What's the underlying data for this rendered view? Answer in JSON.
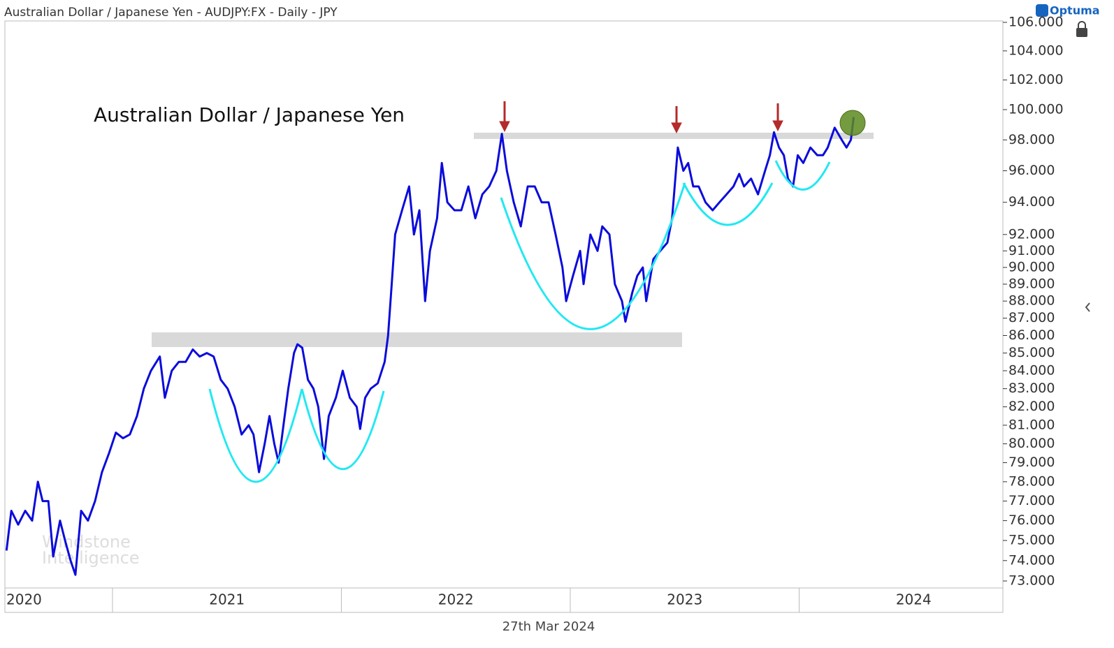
{
  "chart_data": {
    "type": "line",
    "title": "Australian Dollar / Japanese Yen - AUDJPY:FX - Daily - JPY",
    "annotation": "Australian Dollar / Japanese Yen",
    "brand": "Optuma",
    "watermark": [
      "Windstone",
      "Intelligence"
    ],
    "date_label": "27th Mar 2024",
    "log_scale": true,
    "xlim": [
      2020.53,
      2024.89
    ],
    "xticks": [
      2020,
      2021,
      2022,
      2023,
      2024
    ],
    "ylim": [
      72.66,
      106.1
    ],
    "yticks": [
      {
        "value": 73,
        "label": "73.000"
      },
      {
        "value": 74,
        "label": "74.000"
      },
      {
        "value": 75,
        "label": "75.000"
      },
      {
        "value": 76,
        "label": "76.000"
      },
      {
        "value": 77,
        "label": "77.000"
      },
      {
        "value": 78,
        "label": "78.000"
      },
      {
        "value": 79,
        "label": "79.000"
      },
      {
        "value": 80,
        "label": "80.000"
      },
      {
        "value": 81,
        "label": "81.000"
      },
      {
        "value": 82,
        "label": "82.000"
      },
      {
        "value": 83,
        "label": "83.000"
      },
      {
        "value": 84,
        "label": "84.000"
      },
      {
        "value": 85,
        "label": "85.000"
      },
      {
        "value": 86,
        "label": "86.000"
      },
      {
        "value": 87,
        "label": "87.000"
      },
      {
        "value": 88,
        "label": "88.000"
      },
      {
        "value": 89,
        "label": "89.000"
      },
      {
        "value": 90,
        "label": "90.000"
      },
      {
        "value": 91,
        "label": "91.000"
      },
      {
        "value": 92,
        "label": "92.000"
      },
      {
        "value": 94,
        "label": "94.000"
      },
      {
        "value": 96,
        "label": "96.000"
      },
      {
        "value": 98,
        "label": "98.000"
      },
      {
        "value": 100,
        "label": "100.000"
      },
      {
        "value": 102,
        "label": "102.000"
      },
      {
        "value": 104,
        "label": "104.000"
      },
      {
        "value": 106,
        "label": "106.000"
      }
    ],
    "series": [
      {
        "name": "AUDJPY",
        "color": "#0b0bdc",
        "x": [
          2020.537,
          2020.558,
          2020.588,
          2020.619,
          2020.649,
          2020.674,
          2020.695,
          2020.72,
          2020.741,
          2020.771,
          2020.793,
          2020.817,
          2020.838,
          2020.863,
          2020.893,
          2020.924,
          2020.954,
          2020.985,
          2021.015,
          2021.046,
          2021.076,
          2021.107,
          2021.137,
          2021.168,
          2021.207,
          2021.229,
          2021.259,
          2021.29,
          2021.32,
          2021.351,
          2021.381,
          2021.412,
          2021.442,
          2021.473,
          2021.503,
          2021.534,
          2021.564,
          2021.595,
          2021.616,
          2021.64,
          2021.665,
          2021.686,
          2021.707,
          2021.726,
          2021.747,
          2021.768,
          2021.793,
          2021.808,
          2021.829,
          2021.854,
          2021.878,
          2021.899,
          2021.924,
          2021.945,
          2021.976,
          2022.006,
          2022.037,
          2022.067,
          2022.082,
          2022.104,
          2022.128,
          2022.159,
          2022.189,
          2022.204,
          2022.22,
          2022.235,
          2022.265,
          2022.296,
          2022.317,
          2022.341,
          2022.366,
          2022.387,
          2022.418,
          2022.439,
          2022.463,
          2022.494,
          2022.524,
          2022.555,
          2022.585,
          2022.616,
          2022.646,
          2022.677,
          2022.701,
          2022.723,
          2022.753,
          2022.784,
          2022.814,
          2022.845,
          2022.875,
          2022.905,
          2022.936,
          2022.966,
          2022.982,
          2023.012,
          2023.043,
          2023.058,
          2023.088,
          2023.119,
          2023.14,
          2023.171,
          2023.195,
          2023.226,
          2023.241,
          2023.271,
          2023.293,
          2023.317,
          2023.332,
          2023.363,
          2023.393,
          2023.424,
          2023.445,
          2023.47,
          2023.494,
          2023.515,
          2023.537,
          2023.561,
          2023.591,
          2023.622,
          2023.652,
          2023.683,
          2023.713,
          2023.738,
          2023.759,
          2023.79,
          2023.82,
          2023.851,
          2023.872,
          2023.89,
          2023.912,
          2023.933,
          2023.951,
          2023.973,
          2023.994,
          2024.018,
          2024.049,
          2024.079,
          2024.104,
          2024.125,
          2024.155,
          2024.186,
          2024.207,
          2024.226,
          2024.238
        ],
        "values": [
          74.5,
          76.5,
          75.8,
          76.5,
          76.0,
          78.0,
          77.0,
          77.0,
          74.2,
          76.0,
          75.0,
          74.0,
          73.3,
          76.5,
          76.0,
          77.0,
          78.5,
          79.5,
          80.6,
          80.3,
          80.5,
          81.5,
          83.0,
          84.0,
          84.8,
          82.5,
          84.0,
          84.5,
          84.5,
          85.2,
          84.8,
          85.0,
          84.8,
          83.5,
          83.0,
          82.0,
          80.5,
          81.0,
          80.5,
          78.5,
          80.0,
          81.5,
          80.0,
          79.0,
          81.0,
          83.0,
          85.0,
          85.5,
          85.3,
          83.5,
          83.0,
          82.0,
          79.2,
          81.5,
          82.5,
          84.0,
          82.5,
          82.0,
          80.8,
          82.5,
          83.0,
          83.3,
          84.5,
          86.0,
          89.0,
          92.0,
          93.5,
          95.0,
          92.0,
          93.5,
          88.0,
          91.0,
          93.0,
          96.5,
          94.0,
          93.5,
          93.5,
          95.0,
          93.0,
          94.5,
          95.0,
          96.0,
          98.4,
          96.0,
          94.0,
          92.5,
          95.0,
          95.0,
          94.0,
          94.0,
          92.0,
          90.0,
          88.0,
          89.5,
          91.0,
          89.0,
          92.0,
          91.0,
          92.5,
          92.0,
          89.0,
          88.0,
          86.8,
          88.5,
          89.5,
          90.0,
          88.0,
          90.5,
          91.0,
          91.5,
          93.0,
          97.5,
          96.0,
          96.5,
          95.0,
          95.0,
          94.0,
          93.5,
          94.0,
          94.5,
          95.0,
          95.8,
          95.0,
          95.5,
          94.5,
          96.0,
          97.0,
          98.5,
          97.5,
          97.0,
          95.5,
          95.0,
          97.0,
          96.5,
          97.5,
          97.0,
          97.0,
          97.5,
          98.8,
          98.0,
          97.5,
          98.0,
          99.5
        ]
      }
    ]
  }
}
